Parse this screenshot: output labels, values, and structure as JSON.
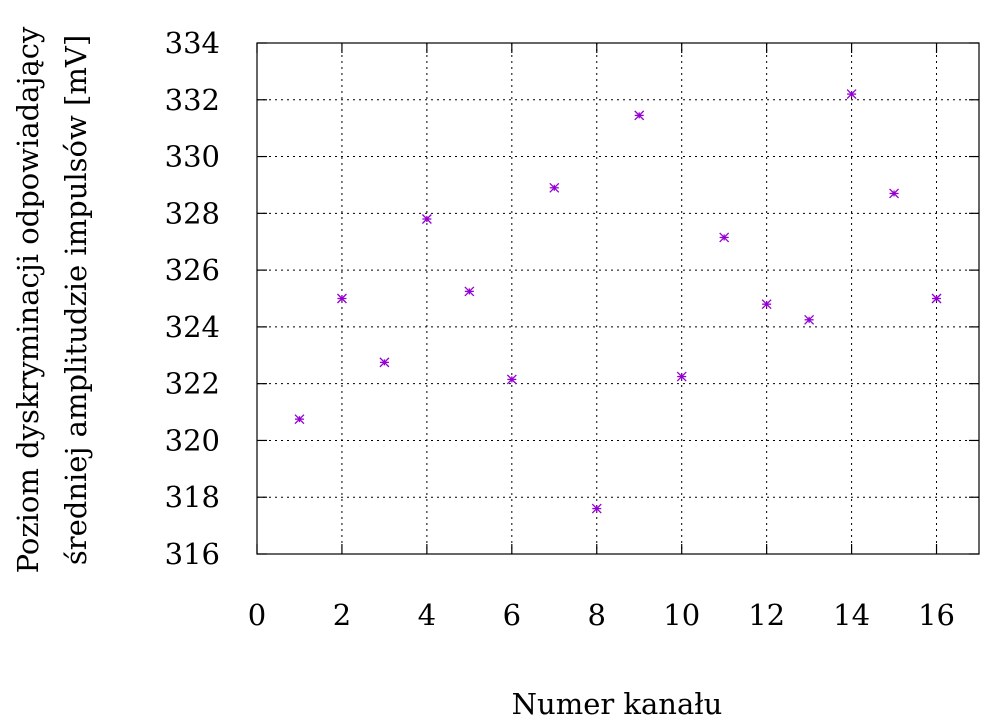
{
  "chart_data": {
    "type": "scatter",
    "title": "",
    "xlabel": "Numer kanału",
    "ylabel_lines": [
      "Poziom dyskryminacji odpowiadający",
      "średniej amplitudzie impulsów [mV]"
    ],
    "xlim": [
      0,
      17
    ],
    "ylim": [
      316,
      334
    ],
    "xticks": [
      "0",
      "2",
      "4",
      "6",
      "8",
      "10",
      "12",
      "14",
      "16"
    ],
    "yticks": [
      "316",
      "318",
      "320",
      "322",
      "324",
      "326",
      "328",
      "330",
      "332",
      "334"
    ],
    "grid": true,
    "legend": "none",
    "marker_color": "#9400d3",
    "series": [
      {
        "x": [
          1,
          2,
          3,
          4,
          5,
          6,
          7,
          8,
          9,
          10,
          11,
          12,
          13,
          14,
          15,
          16
        ],
        "y": [
          320.75,
          325.0,
          322.75,
          327.8,
          325.25,
          322.15,
          328.9,
          317.6,
          331.45,
          322.25,
          327.15,
          324.8,
          324.25,
          332.2,
          328.7,
          325.0
        ]
      }
    ]
  }
}
